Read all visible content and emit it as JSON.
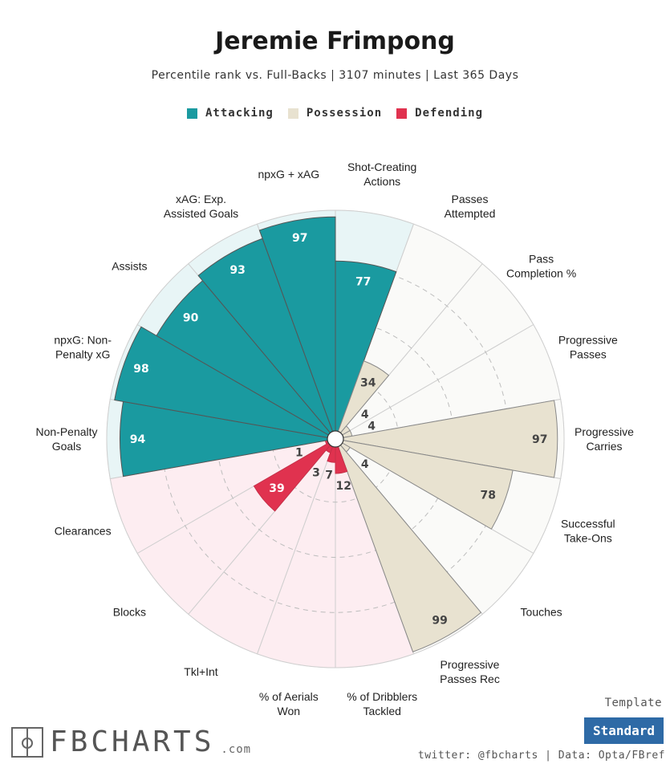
{
  "header": {
    "title": "Jeremie Frimpong",
    "subtitle": "Percentile rank vs. Full-Backs | 3107 minutes | Last 365 Days"
  },
  "legend": [
    {
      "label": "Attacking",
      "color": "#1a9aa0"
    },
    {
      "label": "Possession",
      "color": "#e8e2d0"
    },
    {
      "label": "Defending",
      "color": "#e0324f"
    }
  ],
  "chart_data": {
    "type": "polar-bar",
    "title": "Jeremie Frimpong",
    "subtitle": "Percentile rank vs. Full-Backs | 3107 minutes | Last 365 Days",
    "rlim": [
      0,
      100
    ],
    "categories": [
      {
        "label": [
          "Shot-Creating",
          "Actions"
        ],
        "value": 77,
        "group": "Attacking"
      },
      {
        "label": [
          "Passes",
          "Attempted"
        ],
        "value": 34,
        "group": "Possession"
      },
      {
        "label": [
          "Pass",
          "Completion %"
        ],
        "value": 4,
        "group": "Possession"
      },
      {
        "label": [
          "Progressive",
          "Passes"
        ],
        "value": 4,
        "group": "Possession"
      },
      {
        "label": [
          "Progressive",
          "Carries"
        ],
        "value": 97,
        "group": "Possession"
      },
      {
        "label": [
          "Successful",
          "Take-Ons"
        ],
        "value": 78,
        "group": "Possession"
      },
      {
        "label": [
          "Touches"
        ],
        "value": 4,
        "group": "Possession"
      },
      {
        "label": [
          "Progressive",
          "Passes Rec"
        ],
        "value": 99,
        "group": "Possession"
      },
      {
        "label": [
          "% of Dribblers",
          "Tackled"
        ],
        "value": 12,
        "group": "Defending"
      },
      {
        "label": [
          "% of Aerials",
          "Won"
        ],
        "value": 7,
        "group": "Defending"
      },
      {
        "label": [
          "Tkl+Int"
        ],
        "value": 3,
        "group": "Defending"
      },
      {
        "label": [
          "Blocks"
        ],
        "value": 39,
        "group": "Defending"
      },
      {
        "label": [
          "Clearances"
        ],
        "value": 1,
        "group": "Defending"
      },
      {
        "label": [
          "Non-Penalty",
          "Goals"
        ],
        "value": 94,
        "group": "Attacking"
      },
      {
        "label": [
          "npxG: Non-",
          "Penalty xG"
        ],
        "value": 98,
        "group": "Attacking"
      },
      {
        "label": [
          "Assists"
        ],
        "value": 90,
        "group": "Attacking"
      },
      {
        "label": [
          "xAG: Exp.",
          "Assisted Goals"
        ],
        "value": 93,
        "group": "Attacking"
      },
      {
        "label": [
          "npxG + xAG"
        ],
        "value": 97,
        "group": "Attacking"
      }
    ],
    "colors": {
      "Attacking": {
        "bar": "#1a9aa0",
        "bg": "#e8f5f6"
      },
      "Possession": {
        "bar": "#e8e2d0",
        "bg": "#fafaf8"
      },
      "Defending": {
        "bar": "#e0324f",
        "bg": "#fdedf1"
      }
    }
  },
  "footer": {
    "template_label": "Template",
    "template_value": "Standard",
    "credit": "twitter: @fbcharts | Data: Opta/FBref",
    "logo_text": "FBCHARTS",
    "logo_suffix": ".com"
  }
}
